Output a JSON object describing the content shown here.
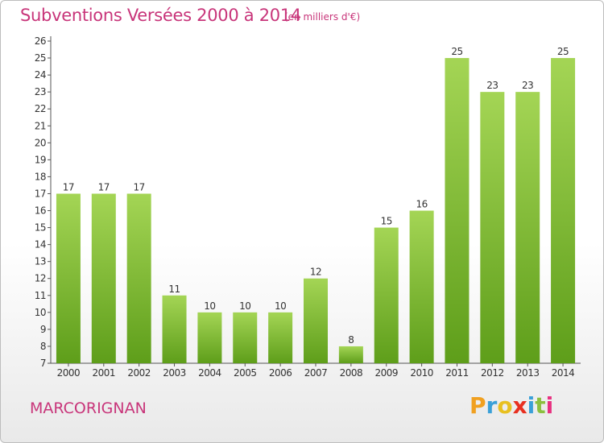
{
  "title": "Subventions Versées 2000 à 2014",
  "subtitle": "(en milliers d'€)",
  "commune": "MARCORIGNAN",
  "logo": {
    "letters": [
      "P",
      "r",
      "o",
      "x",
      "i",
      "t",
      "i"
    ],
    "colors": [
      "#f0a020",
      "#3aa0d8",
      "#e8c020",
      "#e83020",
      "#3aa0d8",
      "#8cc040",
      "#e83080"
    ]
  },
  "colors": {
    "bar_light": "#a4d555",
    "bar_dark": "#5e9e1a",
    "axis": "#555555",
    "text": "#333333",
    "title": "#c8357a"
  },
  "chart_data": {
    "type": "bar",
    "categories": [
      "2000",
      "2001",
      "2002",
      "2003",
      "2004",
      "2005",
      "2006",
      "2007",
      "2008",
      "2009",
      "2010",
      "2011",
      "2012",
      "2013",
      "2014"
    ],
    "values": [
      17,
      17,
      17,
      11,
      10,
      10,
      10,
      12,
      8,
      15,
      16,
      25,
      23,
      23,
      25
    ],
    "ylim": [
      7,
      26
    ],
    "yticks": [
      7,
      8,
      9,
      10,
      11,
      12,
      13,
      14,
      15,
      16,
      17,
      18,
      19,
      20,
      21,
      22,
      23,
      24,
      25,
      26
    ],
    "grid": false,
    "data_labels": true
  }
}
